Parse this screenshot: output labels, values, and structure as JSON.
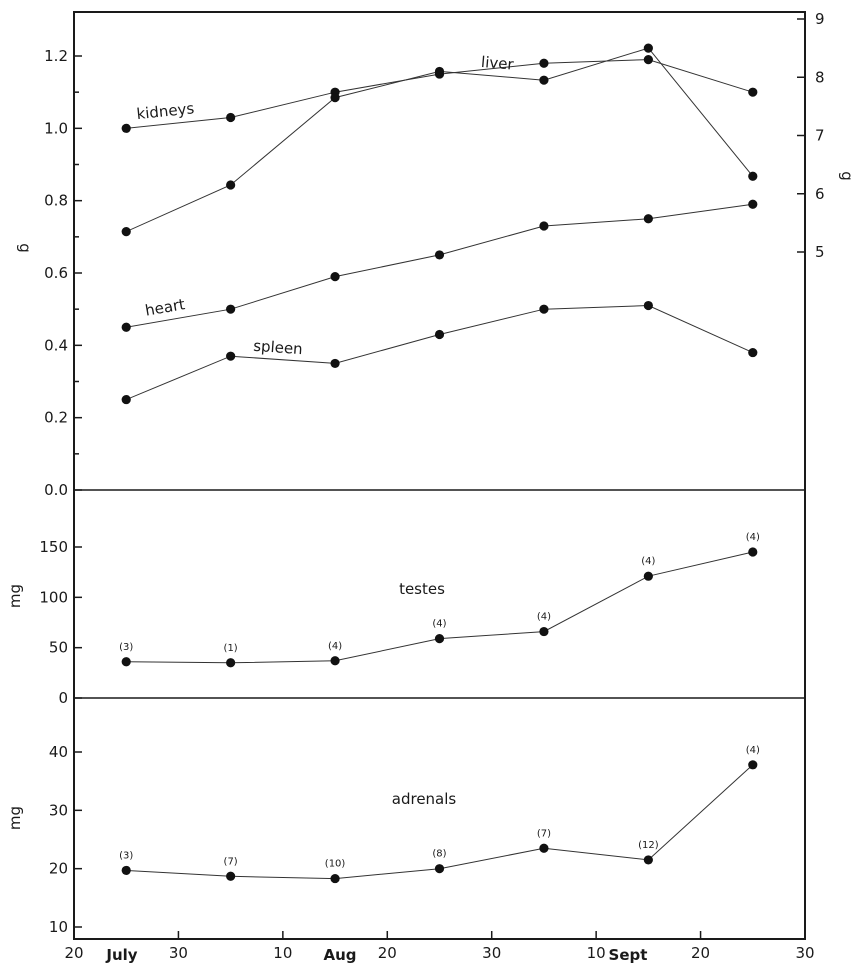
{
  "chart_data": [
    {
      "type": "line",
      "panel": "top",
      "ylabel": "g",
      "ylabel_right": "g",
      "ylim": [
        0.0,
        1.28
      ],
      "y_ticks": [
        "0.0",
        "0.2",
        "0.4",
        "0.6",
        "0.8",
        "1.0",
        "1.2"
      ],
      "y_right_ticks": [
        "5",
        "6",
        "7",
        "8",
        "9"
      ],
      "x": [
        25,
        35,
        45,
        55,
        65,
        75,
        85
      ],
      "series": [
        {
          "name": "kidneys",
          "axis": "left",
          "values": [
            1.0,
            1.03,
            1.1,
            1.15,
            1.18,
            1.19,
            1.1
          ]
        },
        {
          "name": "liver",
          "axis": "right",
          "values": [
            5.35,
            6.15,
            7.65,
            8.1,
            7.95,
            8.5,
            6.3
          ]
        },
        {
          "name": "heart",
          "axis": "left",
          "values": [
            0.45,
            0.5,
            0.59,
            0.65,
            0.73,
            0.75,
            0.79
          ]
        },
        {
          "name": "spleen",
          "axis": "left",
          "values": [
            0.25,
            0.37,
            0.35,
            0.43,
            0.5,
            0.51,
            0.38
          ]
        }
      ]
    },
    {
      "type": "line",
      "panel": "middle",
      "ylabel": "mg",
      "ylim": [
        0,
        170
      ],
      "y_ticks": [
        "0",
        "50",
        "100",
        "150"
      ],
      "x": [
        25,
        35,
        45,
        55,
        65,
        75,
        85
      ],
      "series": [
        {
          "name": "testes",
          "values": [
            36,
            35,
            37,
            59,
            66,
            121,
            145
          ],
          "n": [
            "(3)",
            "(1)",
            "(4)",
            "(4)",
            "(4)",
            "(4)",
            "(4)"
          ]
        }
      ]
    },
    {
      "type": "line",
      "panel": "bottom",
      "ylabel": "mg",
      "ylim": [
        10,
        48
      ],
      "y_ticks": [
        "10",
        "20",
        "30",
        "40"
      ],
      "x": [
        25,
        35,
        45,
        55,
        65,
        75,
        85
      ],
      "series": [
        {
          "name": "adrenals",
          "values": [
            19.7,
            18.7,
            18.3,
            20.0,
            23.5,
            21.5,
            37.8
          ],
          "n": [
            "(3)",
            "(7)",
            "(10)",
            "(8)",
            "(7)",
            "(12)",
            "(4)"
          ]
        }
      ]
    }
  ],
  "x_axis": {
    "xlim": [
      20,
      90
    ],
    "tick_values": [
      20,
      30,
      40,
      50,
      60,
      70,
      80,
      90
    ],
    "tick_labels": [
      "20",
      "30",
      "10",
      "20",
      "30",
      "10",
      "20",
      "30"
    ],
    "months": [
      "July",
      "Aug",
      "Sept"
    ]
  },
  "colors": {
    "line": "#333333",
    "point": "#111111",
    "frame": "#1a1a1a"
  }
}
